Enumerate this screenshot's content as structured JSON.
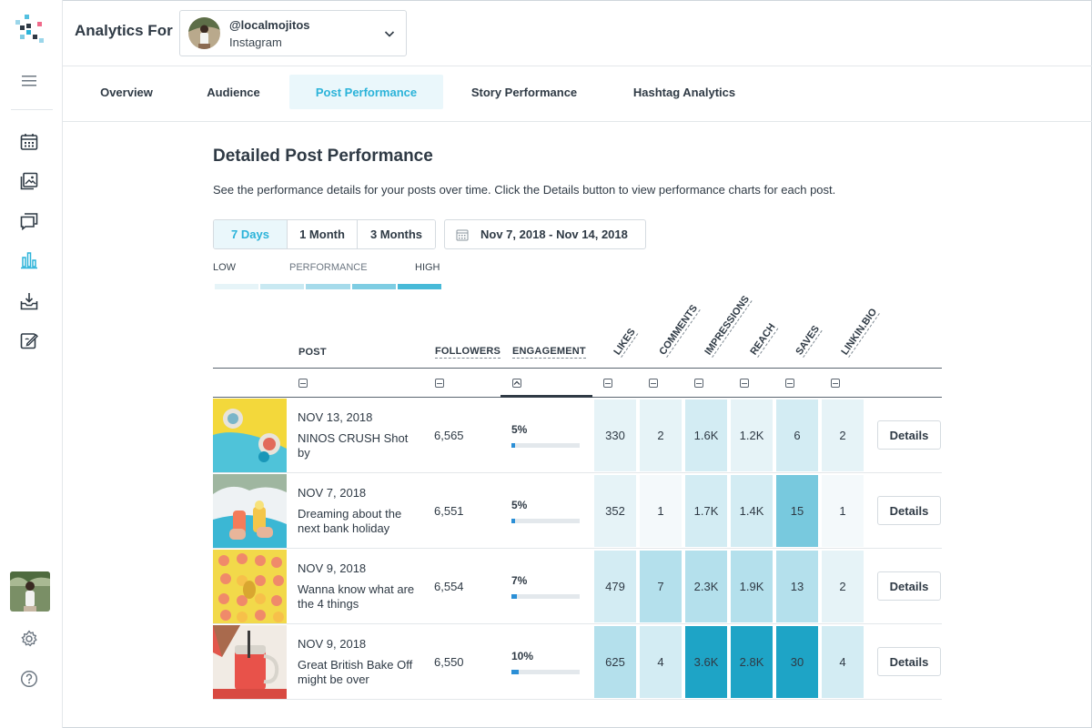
{
  "header": {
    "analytics_for": "Analytics For",
    "account_handle": "@localmojitos",
    "account_network": "Instagram"
  },
  "tabs": [
    {
      "label": "Overview"
    },
    {
      "label": "Audience"
    },
    {
      "label": "Post Performance"
    },
    {
      "label": "Story Performance"
    },
    {
      "label": "Hashtag Analytics"
    }
  ],
  "main": {
    "title": "Detailed Post Performance",
    "description": "See the performance details for your posts over time. Click the Details button to view performance charts for each post.",
    "ranges": [
      {
        "label": "7 Days"
      },
      {
        "label": "1 Month"
      },
      {
        "label": "3 Months"
      }
    ],
    "date_range": "Nov 7, 2018 - Nov 14, 2018",
    "legend": {
      "low": "LOW",
      "mid": "PERFORMANCE",
      "high": "HIGH"
    }
  },
  "table": {
    "headers": {
      "post": "POST",
      "followers": "FOLLOWERS",
      "engagement": "ENGAGEMENT",
      "likes": "LIKES",
      "comments": "COMMENTS",
      "impressions": "IMPRESSIONS",
      "reach": "REACH",
      "saves": "SAVES",
      "linkinbio": "LINKIN.BIO"
    },
    "details_label": "Details",
    "rows": [
      {
        "date": "NOV 13, 2018",
        "caption": "NINOS CRUSH Shot by",
        "followers": "6,565",
        "engagement": "5%",
        "engagement_pct": 5,
        "likes": "330",
        "comments": "2",
        "impressions": "1.6K",
        "reach": "1.2K",
        "saves": "6",
        "linkinbio": "2"
      },
      {
        "date": "NOV 7, 2018",
        "caption": "Dreaming about the next bank holiday",
        "followers": "6,551",
        "engagement": "5%",
        "engagement_pct": 5,
        "likes": "352",
        "comments": "1",
        "impressions": "1.7K",
        "reach": "1.4K",
        "saves": "15",
        "linkinbio": "1"
      },
      {
        "date": "NOV 9, 2018",
        "caption": "Wanna know what are the 4 things",
        "followers": "6,554",
        "engagement": "7%",
        "engagement_pct": 7,
        "likes": "479",
        "comments": "7",
        "impressions": "2.3K",
        "reach": "1.9K",
        "saves": "13",
        "linkinbio": "2"
      },
      {
        "date": "NOV 9, 2018",
        "caption": "Great British Bake Off might be over",
        "followers": "6,550",
        "engagement": "10%",
        "engagement_pct": 10,
        "likes": "625",
        "comments": "4",
        "impressions": "3.6K",
        "reach": "2.8K",
        "saves": "30",
        "linkinbio": "4"
      }
    ]
  },
  "colors": {
    "accent": "#2bb3d9",
    "heat_levels": [
      "#f4f9fb",
      "#e6f3f7",
      "#d3ecf3",
      "#b4e0ec",
      "#78c9de",
      "#1ea4c6"
    ]
  }
}
